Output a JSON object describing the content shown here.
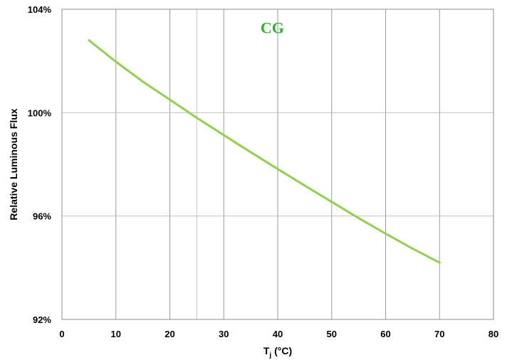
{
  "chart_data": {
    "type": "line",
    "title": "",
    "xlabel": {
      "main": "T",
      "sub": "j",
      "rest": " (°C)"
    },
    "ylabel": "Relative Luminous Flux",
    "xlim": [
      0,
      80
    ],
    "ylim": [
      92,
      104
    ],
    "x_ticks": [
      0,
      10,
      20,
      30,
      40,
      50,
      60,
      70,
      80
    ],
    "x_tick_labels": [
      "0",
      "10",
      "20",
      "30",
      "40",
      "50",
      "60",
      "70",
      "80"
    ],
    "y_ticks": [
      92,
      96,
      100,
      104
    ],
    "y_tick_labels": [
      "92%",
      "96%",
      "100%",
      "104%"
    ],
    "extra_vertical_gridline": 25,
    "grid": true,
    "annotation": {
      "text": "CG",
      "color": "#2db52a",
      "x": 39,
      "y": 103.3
    },
    "series": [
      {
        "color": "#92d050",
        "x": [
          5,
          10,
          15,
          20,
          25,
          30,
          35,
          40,
          45,
          50,
          55,
          60,
          65,
          70
        ],
        "y": [
          102.8,
          101.97,
          101.2,
          100.5,
          99.8,
          99.13,
          98.47,
          97.82,
          97.18,
          96.55,
          95.92,
          95.32,
          94.74,
          94.2
        ]
      }
    ]
  }
}
